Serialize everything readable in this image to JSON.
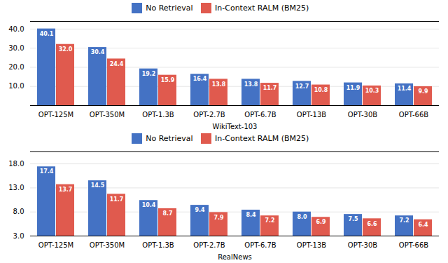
{
  "chart_data": [
    {
      "type": "bar",
      "xlabel": "WikiText-103",
      "categories": [
        "OPT-125M",
        "OPT-350M",
        "OPT-1.3B",
        "OPT-2.7B",
        "OPT-6.7B",
        "OPT-13B",
        "OPT-30B",
        "OPT-66B"
      ],
      "series": [
        {
          "name": "No Retrieval",
          "color": "#4472C4",
          "values": [
            40.1,
            30.4,
            19.2,
            16.4,
            13.8,
            12.7,
            11.9,
            11.4
          ],
          "value_labels": [
            "40.1",
            "30.4",
            "19.2",
            "16.4",
            "13.8",
            "12.7",
            "11.9",
            "11.4"
          ]
        },
        {
          "name": "In-Context RALM (BM25)",
          "color": "#E05A4E",
          "values": [
            32.0,
            24.4,
            15.9,
            13.8,
            11.7,
            10.8,
            10.3,
            9.9
          ],
          "value_labels": [
            "32.0",
            "24.4",
            "15.9",
            "13.8",
            "11.7",
            "10.8",
            "10.3",
            "9.9"
          ]
        }
      ],
      "ylim": [
        0,
        44
      ],
      "yticks": [
        {
          "value": 10,
          "label": "10.0"
        },
        {
          "value": 20,
          "label": "20.0"
        },
        {
          "value": 30,
          "label": "30.0"
        },
        {
          "value": 40,
          "label": "40.0"
        }
      ],
      "grid": true,
      "legend": "top",
      "data_labels": true
    },
    {
      "type": "bar",
      "xlabel": "RealNews",
      "categories": [
        "OPT-125M",
        "OPT-350M",
        "OPT-1.3B",
        "OPT-2.7B",
        "OPT-6.7B",
        "OPT-13B",
        "OPT-30B",
        "OPT-66B"
      ],
      "series": [
        {
          "name": "No Retrieval",
          "color": "#4472C4",
          "values": [
            17.4,
            14.5,
            10.4,
            9.4,
            8.4,
            8.0,
            7.5,
            7.2
          ],
          "value_labels": [
            "17.4",
            "14.5",
            "10.4",
            "9.4",
            "8.4",
            "8.0",
            "7.5",
            "7.2"
          ]
        },
        {
          "name": "In-Context RALM (BM25)",
          "color": "#E05A4E",
          "values": [
            13.7,
            11.7,
            8.7,
            7.9,
            7.2,
            6.9,
            6.6,
            6.4
          ],
          "value_labels": [
            "13.7",
            "11.7",
            "8.7",
            "7.9",
            "7.2",
            "6.9",
            "6.6",
            "6.4"
          ]
        }
      ],
      "ylim": [
        3.0,
        20.5
      ],
      "yticks": [
        {
          "value": 3,
          "label": "3.0"
        },
        {
          "value": 8,
          "label": "8.0"
        },
        {
          "value": 13,
          "label": "13.0"
        },
        {
          "value": 18,
          "label": "18.0"
        }
      ],
      "grid": true,
      "legend": "top",
      "data_labels": true
    }
  ]
}
